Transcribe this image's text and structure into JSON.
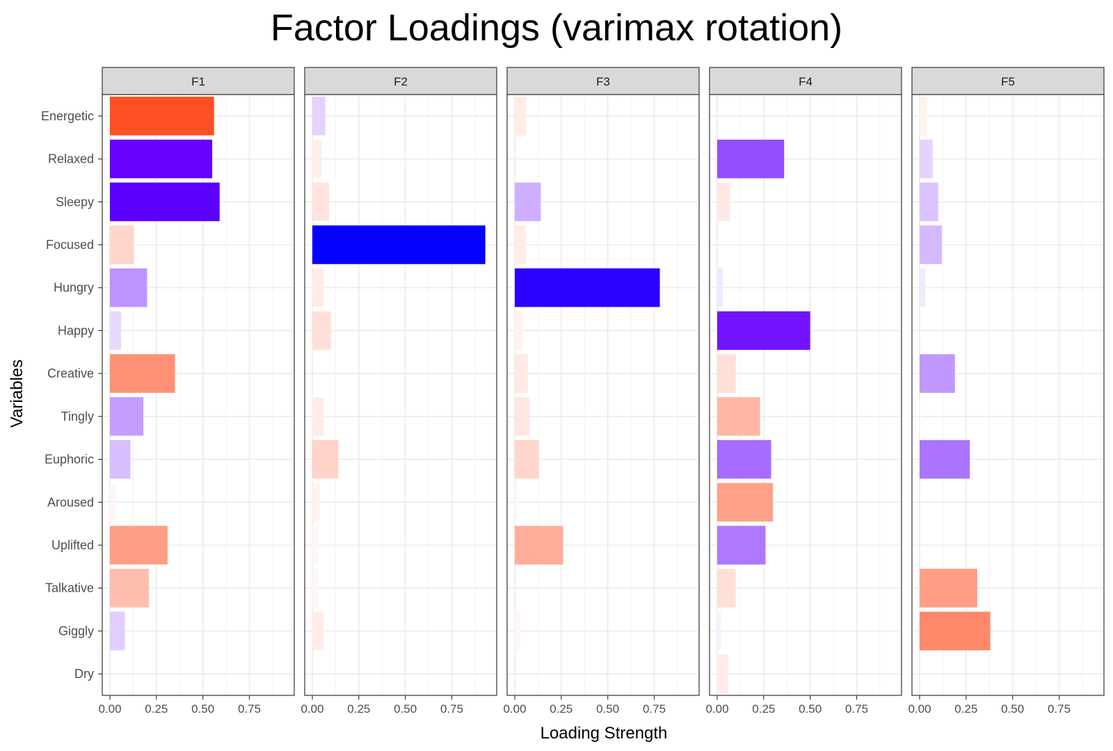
{
  "chart_data": {
    "type": "bar",
    "orientation": "horizontal",
    "title": "Factor Loadings (varimax rotation)",
    "xlabel": "Loading Strength",
    "ylabel": "Variables",
    "xlim": [
      0,
      0.95
    ],
    "xticks": [
      0,
      0.25,
      0.5,
      0.75
    ],
    "xtick_labels": [
      "0.00",
      "0.25",
      "0.50",
      "0.75"
    ],
    "grid": true,
    "facets": [
      "F1",
      "F2",
      "F3",
      "F4",
      "F5"
    ],
    "categories": [
      "Energetic",
      "Relaxed",
      "Sleepy",
      "Focused",
      "Hungry",
      "Happy",
      "Creative",
      "Tingly",
      "Euphoric",
      "Aroused",
      "Uplifted",
      "Talkative",
      "Giggly",
      "Dry"
    ],
    "series": [
      {
        "name": "F1",
        "values": [
          0.56,
          0.55,
          0.59,
          0.13,
          0.2,
          0.06,
          0.35,
          0.18,
          0.11,
          0.03,
          0.31,
          0.21,
          0.08,
          0.0
        ],
        "signs": [
          "+",
          "-",
          "-",
          "+",
          "-",
          "-",
          "+",
          "-",
          "-",
          "+",
          "+",
          "+",
          "-",
          "+"
        ]
      },
      {
        "name": "F2",
        "values": [
          0.07,
          0.05,
          0.09,
          0.93,
          0.06,
          0.1,
          0.0,
          0.06,
          0.14,
          0.04,
          0.03,
          0.03,
          0.06,
          0.0
        ],
        "signs": [
          "-",
          "+",
          "+",
          "-",
          "+",
          "+",
          "+",
          "+",
          "+",
          "+",
          "+",
          "+",
          "+",
          "+"
        ]
      },
      {
        "name": "F3",
        "values": [
          0.06,
          0.0,
          0.14,
          0.06,
          0.78,
          0.04,
          0.07,
          0.08,
          0.13,
          0.02,
          0.26,
          0.0,
          0.03,
          0.0
        ],
        "signs": [
          "+",
          "+",
          "-",
          "+",
          "-",
          "+",
          "+",
          "+",
          "+",
          "+",
          "+",
          "+",
          "+",
          "+"
        ]
      },
      {
        "name": "F4",
        "values": [
          0.0,
          0.36,
          0.07,
          0.0,
          0.03,
          0.5,
          0.1,
          0.23,
          0.29,
          0.3,
          0.26,
          0.1,
          0.02,
          0.06
        ],
        "signs": [
          "+",
          "-",
          "+",
          "+",
          "-",
          "-",
          "+",
          "+",
          "-",
          "+",
          "-",
          "+",
          "-",
          "+"
        ]
      },
      {
        "name": "F5",
        "values": [
          0.04,
          0.07,
          0.1,
          0.12,
          0.03,
          0.0,
          0.19,
          0.01,
          0.27,
          0.0,
          0.0,
          0.31,
          0.38,
          0.0
        ],
        "signs": [
          "+",
          "-",
          "-",
          "-",
          "-",
          "+",
          "-",
          "+",
          "-",
          "+",
          "+",
          "+",
          "+",
          "+"
        ]
      }
    ],
    "colors": {
      "positive": "#ff3300",
      "negative_mid": "#6600ff",
      "negative_strong": "#0000ff",
      "strip_fill": "#d9d9d9",
      "grid": "#ebebeb",
      "panel_border": "#333333"
    }
  }
}
